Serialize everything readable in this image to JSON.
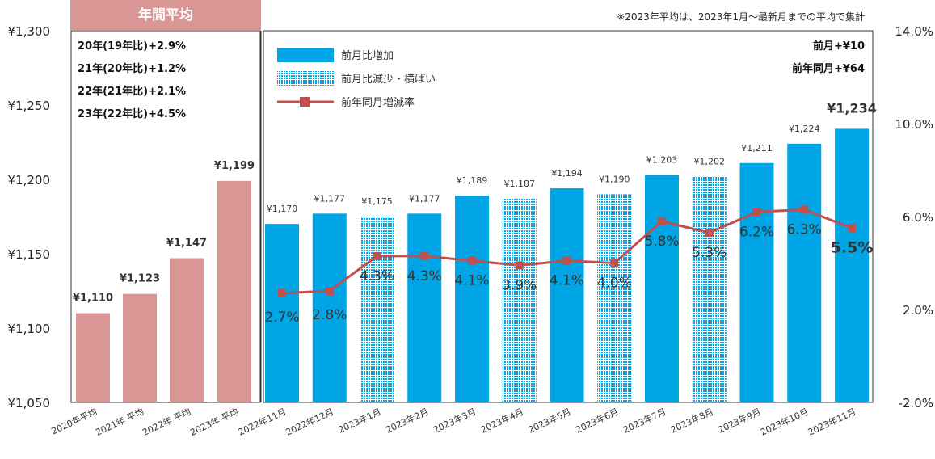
{
  "chart_data": {
    "type": "bar",
    "note": "※2023年平均は、2023年1月～最新月までの平均で集計",
    "header_label": "年間平均",
    "annual_notes": [
      "20年(19年比)+2.9%",
      "21年(20年比)+1.2%",
      "22年(21年比)+2.1%",
      "23年(22年比)+4.5%"
    ],
    "summary": [
      "前月+¥10",
      "前年同月+¥64"
    ],
    "legend": [
      "前月比増加",
      "前月比減少・横ばい",
      "前年同月増減率"
    ],
    "annual": {
      "categories": [
        "2020年平均",
        "2021年 平均",
        "2022年 平均",
        "2023年 平均"
      ],
      "values": [
        1110,
        1123,
        1147,
        1199
      ],
      "labels": [
        "¥1,110",
        "¥1,123",
        "¥1,147",
        "¥1,199"
      ]
    },
    "monthly": {
      "categories": [
        "2022年11月",
        "2022年12月",
        "2023年1月",
        "2023年2月",
        "2023年3月",
        "2023年4月",
        "2023年5月",
        "2023年6月",
        "2023年7月",
        "2023年8月",
        "2023年9月",
        "2023年10月",
        "2023年11月"
      ],
      "values": [
        1170,
        1177,
        1175,
        1177,
        1189,
        1187,
        1194,
        1190,
        1203,
        1202,
        1211,
        1224,
        1234
      ],
      "labels": [
        "¥1,170",
        "¥1,177",
        "¥1,175",
        "¥1,177",
        "¥1,189",
        "¥1,187",
        "¥1,194",
        "¥1,190",
        "¥1,203",
        "¥1,202",
        "¥1,211",
        "¥1,224",
        "¥1,234"
      ],
      "status": [
        "increase",
        "increase",
        "decrease",
        "increase",
        "increase",
        "decrease",
        "increase",
        "decrease",
        "increase",
        "decrease",
        "increase",
        "increase",
        "increase"
      ],
      "yoy_rate": [
        2.7,
        2.8,
        4.3,
        4.3,
        4.1,
        3.9,
        4.1,
        4.0,
        5.8,
        5.3,
        6.2,
        6.3,
        5.5
      ],
      "yoy_labels": [
        "2.7%",
        "2.8%",
        "4.3%",
        "4.3%",
        "4.1%",
        "3.9%",
        "4.1%",
        "4.0%",
        "5.8%",
        "5.3%",
        "6.2%",
        "6.3%",
        "5.5%"
      ]
    },
    "y_left": {
      "min": 1050,
      "max": 1300,
      "ticks": [
        1050,
        1100,
        1150,
        1200,
        1250,
        1300
      ],
      "tick_labels": [
        "¥1,050",
        "¥1,100",
        "¥1,150",
        "¥1,200",
        "¥1,250",
        "¥1,300"
      ]
    },
    "y_right": {
      "min": -2.0,
      "max": 14.0,
      "ticks": [
        -2.0,
        2.0,
        6.0,
        10.0,
        14.0
      ],
      "tick_labels": [
        "-2.0%",
        "2.0%",
        "6.0%",
        "10.0%",
        "14.0%"
      ]
    },
    "colors": {
      "annual": "#d99694",
      "increase": "#00a5e5",
      "decrease": "#00a5e5",
      "line": "#c0504d",
      "header": "#d99694"
    }
  }
}
